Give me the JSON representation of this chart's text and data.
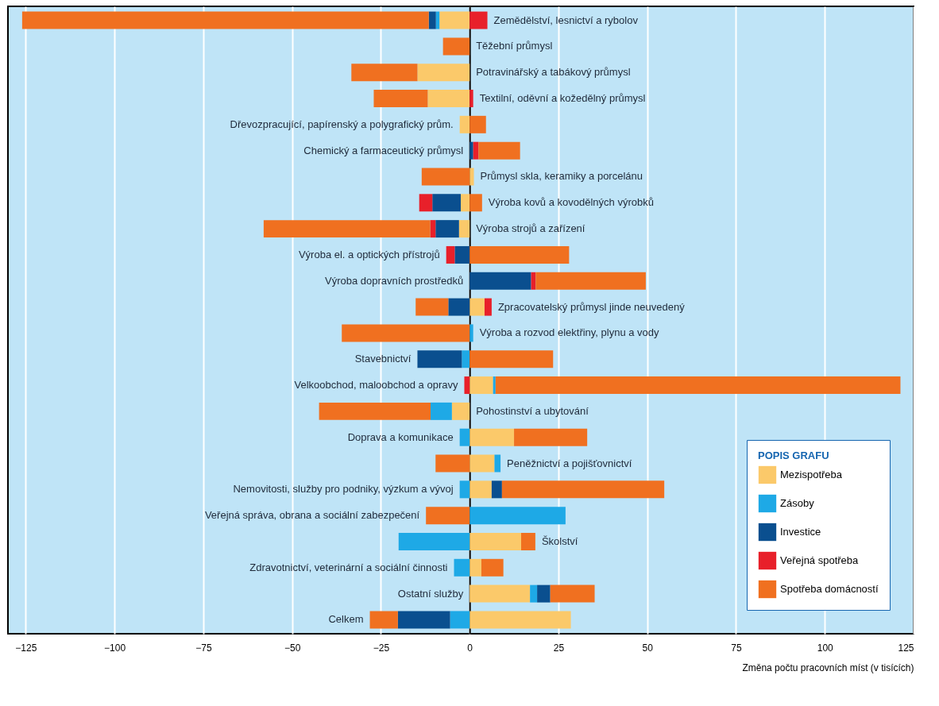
{
  "chart_data": {
    "type": "bar",
    "orientation": "horizontal",
    "stacked": true,
    "categories": [
      "Zemědělství, lesnictví a rybolov",
      "Těžební průmysl",
      "Potravinářský a tabákový průmysl",
      "Textilní, oděvní a kožedělný průmysl",
      "Dřevozpracující, papírenský a polygrafický prům.",
      "Chemický a farmaceutický průmysl",
      "Průmysl skla, keramiky a porcelánu",
      "Výroba kovů a kovodělných výrobků",
      "Výroba strojů a zařízení",
      "Výroba el. a optických přístrojů",
      "Výroba dopravních prostředků",
      "Zpracovatelský průmysl jinde neuvedený",
      "Výroba a rozvod elektřiny, plynu a vody",
      "Stavebnictví",
      "Velkoobchod, maloobchod a opravy",
      "Pohostinství a ubytování",
      "Doprava a komunikace",
      "Peněžnictví a pojišťovnictví",
      "Nemovitosti, služby pro podniky, výzkum a vývoj",
      "Veřejná správa, obrana a sociální zabezpečení",
      "Školství",
      "Zdravotnictví, veterinární a sociální činnosti",
      "Ostatní služby",
      "Celkem"
    ],
    "series": [
      {
        "name": "Mezispotřeba",
        "color": "#fbc96a",
        "values": [
          -8.5,
          null,
          -14.7,
          -11.8,
          -2.8,
          null,
          1.2,
          -2.5,
          -3,
          null,
          null,
          4.2,
          null,
          null,
          6.6,
          -5,
          12.5,
          7,
          6.2,
          null,
          14.5,
          3.3,
          17,
          28.5
        ]
      },
      {
        "name": "Zásoby",
        "color": "#1ea9e6",
        "values": [
          -1,
          null,
          null,
          null,
          null,
          null,
          null,
          null,
          null,
          null,
          null,
          null,
          1,
          -2.2,
          0.7,
          -6,
          -2.8,
          1.7,
          -2.8,
          27,
          -20,
          -4.4,
          2,
          -5.5
        ]
      },
      {
        "name": "Investice",
        "color": "#0a4f8f",
        "values": [
          -2,
          null,
          null,
          null,
          null,
          1,
          null,
          -8,
          -6.6,
          -4.2,
          17.3,
          -6,
          null,
          -12.5,
          null,
          null,
          null,
          null,
          2.9,
          null,
          null,
          null,
          3.7,
          -14.7
        ]
      },
      {
        "name": "Veřejná spotřeba",
        "color": "#e8202a",
        "values": [
          5,
          null,
          null,
          1,
          null,
          1.5,
          null,
          -3.7,
          -1.5,
          -2.4,
          1.3,
          2,
          null,
          null,
          -1.5,
          null,
          null,
          null,
          null,
          null,
          null,
          null,
          null,
          null
        ]
      },
      {
        "name": "Spotřeba domácností",
        "color": "#f07020",
        "values": [
          -114.5,
          -7.5,
          -18.6,
          -15.2,
          4.6,
          11.7,
          -13.5,
          3.5,
          -46.9,
          28,
          31,
          -9.2,
          -36,
          23.5,
          114,
          -31.4,
          20.6,
          -9.6,
          45.7,
          -12.3,
          4,
          6.2,
          12.5,
          -7.9
        ]
      }
    ],
    "xlim": [
      -130,
      125
    ],
    "xticks": [
      -125,
      -100,
      -75,
      -50,
      -25,
      0,
      25,
      50,
      75,
      100,
      125
    ],
    "xlabel": "Změna počtu pracovních míst (v tisících)",
    "legend_title": "POPIS GRAFU",
    "legend": "bottom right",
    "grid": "x"
  }
}
